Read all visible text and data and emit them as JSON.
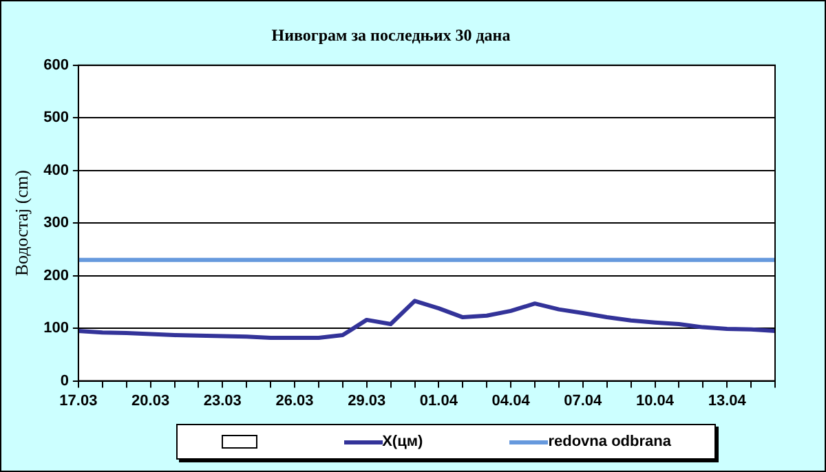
{
  "chart_data": {
    "type": "line",
    "title": "Нивограм за последњих 30 дана",
    "ylabel": "Водостај (cm)",
    "categories": [
      "17.03",
      null,
      null,
      "20.03",
      null,
      null,
      "23.03",
      null,
      null,
      "26.03",
      null,
      null,
      "29.03",
      null,
      null,
      "01.04",
      null,
      null,
      "04.04",
      null,
      null,
      "07.04",
      null,
      null,
      "10.04",
      null,
      null,
      "13.04",
      null,
      null
    ],
    "series": [
      {
        "name": "X(цм)",
        "color": "#333399",
        "values": [
          95,
          92,
          91,
          89,
          87,
          86,
          85,
          84,
          82,
          82,
          82,
          87,
          116,
          108,
          152,
          138,
          121,
          124,
          133,
          147,
          136,
          129,
          121,
          115,
          111,
          108,
          102,
          99,
          98,
          95
        ]
      }
    ],
    "ref_lines": [
      {
        "axis": "y",
        "value": 230,
        "label": "redovna odbrana",
        "color": "#6699dd"
      }
    ],
    "ylim": [
      0,
      600
    ],
    "yticks": [
      0,
      100,
      200,
      300,
      400,
      500,
      600
    ],
    "grid": "y",
    "legend": "bottom",
    "marker": "none",
    "line_style": "solid"
  }
}
